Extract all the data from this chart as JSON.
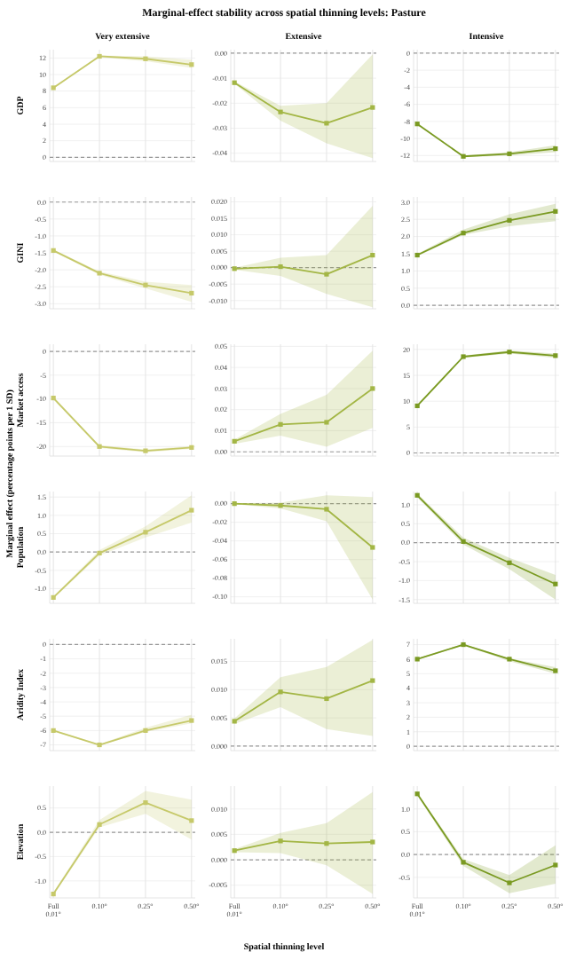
{
  "chart_data": [
    {
      "type": "line",
      "title": "Marginal-effect stability across spatial thinning levels: Pasture",
      "subtitle": "Very extensive",
      "ylabel": "GDP",
      "categories": [
        null,
        null,
        null,
        null
      ],
      "series": [
        {
          "color": "#c6c96a",
          "values": [
            8.4,
            12.2,
            11.9,
            11.2
          ],
          "lower": [
            8.3,
            12.1,
            11.6,
            10.8
          ],
          "upper": [
            8.5,
            12.3,
            12.2,
            11.8
          ]
        }
      ],
      "ylim": [
        -0.5,
        13
      ],
      "yticks": [
        0,
        2,
        4,
        6,
        8,
        10,
        12
      ],
      "ref_lines": [
        {
          "axis": "y",
          "value": 0,
          "line_style": "dashed",
          "color": "#999999"
        }
      ],
      "grid": true,
      "marker": "square",
      "tick_labels": "y"
    },
    {
      "type": "line",
      "subtitle": "Extensive",
      "categories": [
        null,
        null,
        null,
        null
      ],
      "series": [
        {
          "color": "#a3b645",
          "values": [
            -0.0118,
            -0.0235,
            -0.028,
            -0.0217
          ],
          "lower": [
            -0.0123,
            -0.027,
            -0.036,
            -0.042
          ],
          "upper": [
            -0.0113,
            -0.021,
            -0.02,
            -0.0005
          ]
        }
      ],
      "ylim": [
        -0.0433,
        0.0014
      ],
      "yticks": [
        {
          "value": 0,
          "label": "0.00"
        },
        {
          "value": -0.01,
          "label": "-0.01"
        },
        {
          "value": -0.02,
          "label": "-0.02"
        },
        {
          "value": -0.03,
          "label": "-0.03"
        },
        {
          "value": -0.04,
          "label": "-0.04"
        }
      ],
      "ref_lines": [
        {
          "axis": "y",
          "value": 0,
          "line_style": "dashed",
          "color": "#999999"
        }
      ],
      "grid": true,
      "marker": "square",
      "tick_labels": "y"
    },
    {
      "type": "line",
      "subtitle": "Intensive",
      "categories": [
        null,
        null,
        null,
        null
      ],
      "series": [
        {
          "color": "#7a9a22",
          "values": [
            -8.3,
            -12.1,
            -11.8,
            -11.2
          ],
          "lower": [
            -8.4,
            -12.2,
            -12.0,
            -11.6
          ],
          "upper": [
            -8.2,
            -12.0,
            -11.6,
            -10.8
          ]
        }
      ],
      "ylim": [
        -12.7,
        0.4
      ],
      "yticks": [
        0,
        -2,
        -4,
        -6,
        -8,
        -10,
        -12
      ],
      "ref_lines": [
        {
          "axis": "y",
          "value": 0,
          "line_style": "dashed",
          "color": "#999999"
        }
      ],
      "grid": true,
      "marker": "square",
      "tick_labels": "y"
    },
    {
      "type": "line",
      "ylabel": "GINI",
      "categories": [
        null,
        null,
        null,
        null
      ],
      "series": [
        {
          "color": "#c6c96a",
          "values": [
            -1.43,
            -2.1,
            -2.45,
            -2.69
          ],
          "lower": [
            -1.46,
            -2.15,
            -2.55,
            -2.95
          ],
          "upper": [
            -1.4,
            -2.05,
            -2.35,
            -2.45
          ]
        }
      ],
      "ylim": [
        -3.15,
        0.15
      ],
      "yticks": [
        {
          "value": 0,
          "label": "0.0"
        },
        {
          "value": -0.5,
          "label": "-0.5"
        },
        {
          "value": -1,
          "label": "-1.0"
        },
        {
          "value": -1.5,
          "label": "-1.5"
        },
        {
          "value": -2,
          "label": "-2.0"
        },
        {
          "value": -2.5,
          "label": "-2.5"
        },
        {
          "value": -3,
          "label": "-3.0"
        }
      ],
      "ref_lines": [
        {
          "axis": "y",
          "value": 0,
          "line_style": "dashed",
          "color": "#999999"
        }
      ],
      "grid": true,
      "marker": "square",
      "tick_labels": "y"
    },
    {
      "type": "line",
      "categories": [
        null,
        null,
        null,
        null
      ],
      "series": [
        {
          "color": "#a3b645",
          "values": [
            -0.0003,
            0.0003,
            -0.002,
            0.0038
          ],
          "lower": [
            -0.0006,
            -0.0025,
            -0.008,
            -0.012
          ],
          "upper": [
            0,
            0.003,
            0.0038,
            0.0188
          ]
        }
      ],
      "ylim": [
        -0.0125,
        0.0215
      ],
      "yticks": [
        {
          "value": 0.02,
          "label": "0.020"
        },
        {
          "value": 0.015,
          "label": "0.015"
        },
        {
          "value": 0.01,
          "label": "0.010"
        },
        {
          "value": 0.005,
          "label": "0.005"
        },
        {
          "value": 0,
          "label": "0.000"
        },
        {
          "value": -0.005,
          "label": "-0.005"
        },
        {
          "value": -0.01,
          "label": "-0.010"
        }
      ],
      "ref_lines": [
        {
          "axis": "y",
          "value": 0,
          "line_style": "dashed",
          "color": "#999999"
        }
      ],
      "grid": true,
      "marker": "square",
      "tick_labels": "y"
    },
    {
      "type": "line",
      "categories": [
        null,
        null,
        null,
        null
      ],
      "series": [
        {
          "color": "#7a9a22",
          "values": [
            1.46,
            2.1,
            2.47,
            2.73
          ],
          "lower": [
            1.43,
            2.05,
            2.3,
            2.45
          ],
          "upper": [
            1.49,
            2.2,
            2.65,
            2.95
          ]
        }
      ],
      "ylim": [
        -0.1,
        3.15
      ],
      "yticks": [
        {
          "value": 3,
          "label": "3.0"
        },
        {
          "value": 2.5,
          "label": "2.5"
        },
        {
          "value": 2,
          "label": "2.0"
        },
        {
          "value": 1.5,
          "label": "1.5"
        },
        {
          "value": 1,
          "label": "1.0"
        },
        {
          "value": 0.5,
          "label": "0.5"
        },
        {
          "value": 0,
          "label": "0.0"
        }
      ],
      "ref_lines": [
        {
          "axis": "y",
          "value": 0,
          "line_style": "dashed",
          "color": "#999999"
        }
      ],
      "grid": true,
      "marker": "square",
      "tick_labels": "y"
    },
    {
      "type": "line",
      "ylabel": "Market access",
      "annotations": [
        "Marginal effect (percentage points per 1 SD)"
      ],
      "categories": [
        null,
        null,
        null,
        null
      ],
      "series": [
        {
          "color": "#c6c96a",
          "values": [
            -9.8,
            -20,
            -20.9,
            -20.2
          ],
          "lower": [
            -10.1,
            -20.3,
            -21.2,
            -20.5
          ],
          "upper": [
            -9.5,
            -19.7,
            -20.6,
            -19.9
          ]
        }
      ],
      "ylim": [
        -22,
        1.5
      ],
      "yticks": [
        0,
        -5,
        -10,
        -15,
        -20
      ],
      "ref_lines": [
        {
          "axis": "y",
          "value": 0,
          "line_style": "dashed",
          "color": "#999999"
        }
      ],
      "grid": true,
      "marker": "square",
      "tick_labels": "y"
    },
    {
      "type": "line",
      "categories": [
        null,
        null,
        null,
        null
      ],
      "series": [
        {
          "color": "#a3b645",
          "values": [
            0.005,
            0.013,
            0.014,
            0.03
          ],
          "lower": [
            0.0038,
            0.0077,
            0.0024,
            0.0114
          ],
          "upper": [
            0.0058,
            0.018,
            0.027,
            0.048
          ]
        }
      ],
      "ylim": [
        -0.002,
        0.051
      ],
      "yticks": [
        {
          "value": 0.05,
          "label": "0.05"
        },
        {
          "value": 0.04,
          "label": "0.04"
        },
        {
          "value": 0.03,
          "label": "0.03"
        },
        {
          "value": 0.02,
          "label": "0.02"
        },
        {
          "value": 0.01,
          "label": "0.01"
        },
        {
          "value": 0,
          "label": "0.00"
        }
      ],
      "ref_lines": [
        {
          "axis": "y",
          "value": 0,
          "line_style": "dashed",
          "color": "#999999"
        }
      ],
      "grid": true,
      "marker": "square",
      "tick_labels": "y"
    },
    {
      "type": "line",
      "categories": [
        null,
        null,
        null,
        null
      ],
      "series": [
        {
          "color": "#7a9a22",
          "values": [
            9.1,
            18.6,
            19.5,
            18.8
          ],
          "lower": [
            8.9,
            18.4,
            19.2,
            18.4
          ],
          "upper": [
            9.3,
            18.8,
            19.8,
            19.2
          ]
        }
      ],
      "ylim": [
        -0.6,
        21
      ],
      "yticks": [
        20,
        15,
        10,
        5,
        0
      ],
      "ref_lines": [
        {
          "axis": "y",
          "value": 0,
          "line_style": "dashed",
          "color": "#999999"
        }
      ],
      "grid": true,
      "marker": "square",
      "tick_labels": "y"
    },
    {
      "type": "line",
      "ylabel": "Population",
      "categories": [
        null,
        null,
        null,
        null
      ],
      "series": [
        {
          "color": "#c6c96a",
          "values": [
            -1.24,
            -0.03,
            0.54,
            1.14
          ],
          "lower": [
            -1.27,
            -0.1,
            0.4,
            0.8
          ],
          "upper": [
            -1.21,
            0.05,
            0.7,
            1.55
          ]
        }
      ],
      "ylim": [
        -1.4,
        1.65
      ],
      "yticks": [
        {
          "value": 1.5,
          "label": "1.5"
        },
        {
          "value": 1,
          "label": "1.0"
        },
        {
          "value": 0.5,
          "label": "0.5"
        },
        {
          "value": 0,
          "label": "0.0"
        },
        {
          "value": -0.5,
          "label": "-0.5"
        },
        {
          "value": -1,
          "label": "-1.0"
        }
      ],
      "ref_lines": [
        {
          "axis": "y",
          "value": 0,
          "line_style": "dashed",
          "color": "#999999"
        }
      ],
      "grid": true,
      "marker": "square",
      "tick_labels": "y"
    },
    {
      "type": "line",
      "categories": [
        null,
        null,
        null,
        null
      ],
      "series": [
        {
          "color": "#a3b645",
          "values": [
            0,
            -0.002,
            -0.006,
            -0.047
          ],
          "lower": [
            -0.0005,
            -0.005,
            -0.019,
            -0.103
          ],
          "upper": [
            0.0005,
            0.001,
            0.009,
            0.007
          ]
        }
      ],
      "ylim": [
        -0.107,
        0.013
      ],
      "yticks": [
        {
          "value": 0,
          "label": "0.00"
        },
        {
          "value": -0.02,
          "label": "-0.02"
        },
        {
          "value": -0.04,
          "label": "-0.04"
        },
        {
          "value": -0.06,
          "label": "-0.06"
        },
        {
          "value": -0.08,
          "label": "-0.08"
        },
        {
          "value": -0.1,
          "label": "-0.10"
        }
      ],
      "ref_lines": [
        {
          "axis": "y",
          "value": 0,
          "line_style": "dashed",
          "color": "#999999"
        }
      ],
      "grid": true,
      "marker": "square",
      "tick_labels": "y"
    },
    {
      "type": "line",
      "categories": [
        null,
        null,
        null,
        null
      ],
      "series": [
        {
          "color": "#7a9a22",
          "values": [
            1.25,
            0.03,
            -0.53,
            -1.09
          ],
          "lower": [
            1.2,
            -0.05,
            -0.7,
            -1.5
          ],
          "upper": [
            1.3,
            0.13,
            -0.4,
            -0.85
          ]
        }
      ],
      "ylim": [
        -1.6,
        1.35
      ],
      "yticks": [
        {
          "value": 1,
          "label": "1.0"
        },
        {
          "value": 0.5,
          "label": "0.5"
        },
        {
          "value": 0,
          "label": "0.0"
        },
        {
          "value": -0.5,
          "label": "-0.5"
        },
        {
          "value": -1,
          "label": "-1.0"
        },
        {
          "value": -1.5,
          "label": "-1.5"
        }
      ],
      "ref_lines": [
        {
          "axis": "y",
          "value": 0,
          "line_style": "dashed",
          "color": "#999999"
        }
      ],
      "grid": true,
      "marker": "square",
      "tick_labels": "y"
    },
    {
      "type": "line",
      "ylabel": "Aridity Index",
      "categories": [
        null,
        null,
        null,
        null
      ],
      "series": [
        {
          "color": "#c6c96a",
          "values": [
            -6,
            -7,
            -6,
            -5.3
          ],
          "lower": [
            -6.05,
            -7.05,
            -6.1,
            -5.5
          ],
          "upper": [
            -5.95,
            -6.95,
            -5.8,
            -4.9
          ]
        }
      ],
      "ylim": [
        -7.4,
        0.4
      ],
      "yticks": [
        0,
        -1,
        -2,
        -3,
        -4,
        -5,
        -6,
        -7
      ],
      "ref_lines": [
        {
          "axis": "y",
          "value": 0,
          "line_style": "dashed",
          "color": "#999999"
        }
      ],
      "grid": true,
      "marker": "square",
      "tick_labels": "y"
    },
    {
      "type": "line",
      "categories": [
        null,
        null,
        null,
        null
      ],
      "series": [
        {
          "color": "#a3b645",
          "values": [
            0.0044,
            0.0096,
            0.0084,
            0.0116
          ],
          "lower": [
            0.0039,
            0.0069,
            0.003,
            0.0018
          ],
          "upper": [
            0.0049,
            0.0122,
            0.014,
            0.0188
          ]
        }
      ],
      "ylim": [
        -0.0008,
        0.019
      ],
      "yticks": [
        {
          "value": 0.015,
          "label": "0.015"
        },
        {
          "value": 0.01,
          "label": "0.010"
        },
        {
          "value": 0.005,
          "label": "0.005"
        },
        {
          "value": 0,
          "label": "0.000"
        }
      ],
      "ref_lines": [
        {
          "axis": "y",
          "value": 0,
          "line_style": "dashed",
          "color": "#999999"
        }
      ],
      "grid": true,
      "marker": "square",
      "tick_labels": "y"
    },
    {
      "type": "line",
      "categories": [
        null,
        null,
        null,
        null
      ],
      "series": [
        {
          "color": "#7a9a22",
          "values": [
            6,
            7,
            6,
            5.2
          ],
          "lower": [
            5.95,
            6.95,
            5.85,
            5
          ],
          "upper": [
            6.05,
            7.05,
            6.05,
            5.45
          ]
        }
      ],
      "ylim": [
        -0.3,
        7.4
      ],
      "yticks": [
        7,
        6,
        5,
        4,
        3,
        2,
        1,
        0
      ],
      "ref_lines": [
        {
          "axis": "y",
          "value": 0,
          "line_style": "dashed",
          "color": "#999999"
        }
      ],
      "grid": true,
      "marker": "square",
      "tick_labels": "y"
    },
    {
      "type": "line",
      "ylabel": "Elevation",
      "categories": [
        "Full 0.01°",
        "0.10°",
        "0.25°",
        "0.50°"
      ],
      "series": [
        {
          "color": "#c6c96a",
          "values": [
            -1.27,
            0.16,
            0.61,
            0.24
          ],
          "lower": [
            -1.3,
            0.1,
            0.38,
            -0.15
          ],
          "upper": [
            -1.24,
            0.25,
            0.85,
            0.67
          ]
        }
      ],
      "ylim": [
        -1.35,
        0.95
      ],
      "yticks": [
        {
          "value": 0.5,
          "label": "0.5"
        },
        {
          "value": 0,
          "label": "0.0"
        },
        {
          "value": -0.5,
          "label": "-0.5"
        },
        {
          "value": -1,
          "label": "-1.0"
        }
      ],
      "ref_lines": [
        {
          "axis": "y",
          "value": 0,
          "line_style": "dashed",
          "color": "#999999"
        }
      ],
      "grid": true,
      "marker": "square"
    },
    {
      "type": "line",
      "xlabel": "Spatial thinning level",
      "categories": [
        "Full 0.01°",
        "0.10°",
        "0.25°",
        "0.50°"
      ],
      "series": [
        {
          "color": "#a3b645",
          "values": [
            0.0018,
            0.0037,
            0.0032,
            0.0035
          ],
          "lower": [
            0.0015,
            0.0013,
            -0.0011,
            -0.0067
          ],
          "upper": [
            0.0021,
            0.0053,
            0.0072,
            0.0133
          ]
        }
      ],
      "ylim": [
        -0.0075,
        0.0145
      ],
      "yticks": [
        {
          "value": 0.01,
          "label": "0.010"
        },
        {
          "value": 0.005,
          "label": "0.005"
        },
        {
          "value": 0,
          "label": "0.000"
        },
        {
          "value": -0.005,
          "label": "-0.005"
        }
      ],
      "ref_lines": [
        {
          "axis": "y",
          "value": 0,
          "line_style": "dashed",
          "color": "#999999"
        }
      ],
      "grid": true,
      "marker": "square"
    },
    {
      "type": "line",
      "categories": [
        "Full 0.01°",
        "0.10°",
        "0.25°",
        "0.50°"
      ],
      "series": [
        {
          "color": "#7a9a22",
          "values": [
            1.33,
            -0.17,
            -0.62,
            -0.23
          ],
          "lower": [
            1.3,
            -0.25,
            -0.85,
            -0.64
          ],
          "upper": [
            1.36,
            -0.1,
            -0.45,
            0.2
          ]
        }
      ],
      "ylim": [
        -0.95,
        1.5
      ],
      "yticks": [
        {
          "value": 1,
          "label": "1.0"
        },
        {
          "value": 0.5,
          "label": "0.5"
        },
        {
          "value": 0,
          "label": "0.0"
        },
        {
          "value": -0.5,
          "label": "-0.5"
        }
      ],
      "ref_lines": [
        {
          "axis": "y",
          "value": 0,
          "line_style": "dashed",
          "color": "#999999"
        }
      ],
      "grid": true,
      "marker": "square"
    }
  ]
}
